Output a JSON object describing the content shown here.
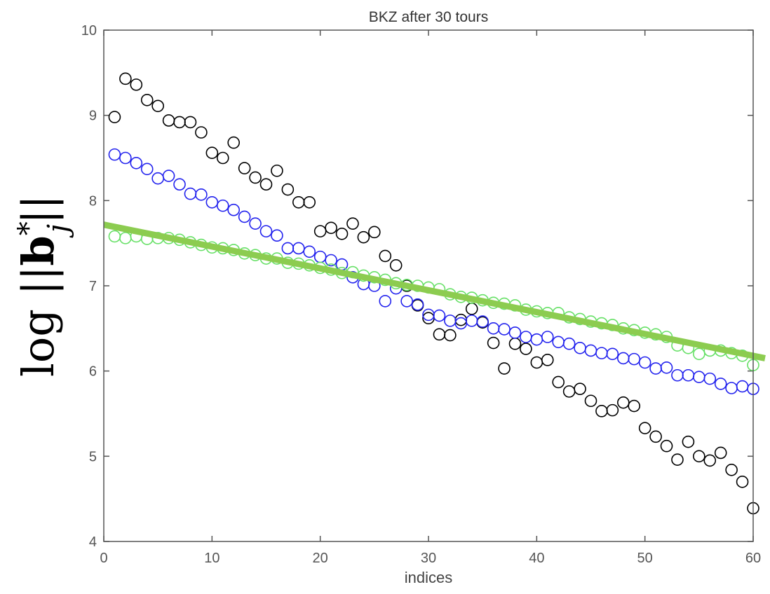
{
  "colors": {
    "axes": "#555555",
    "background": "#ffffff"
  },
  "chart_data": {
    "type": "scatter",
    "title": "BKZ after 30 tours",
    "xlabel": "indices",
    "ylabel": {
      "prefix": "log ||",
      "symbol": "b",
      "superscript": "*",
      "subscript": "j",
      "suffix": "||"
    },
    "xlim": [
      0,
      60
    ],
    "ylim": [
      4,
      10
    ],
    "xticks": [
      0,
      10,
      20,
      30,
      40,
      50,
      60
    ],
    "yticks": [
      4,
      5,
      6,
      7,
      8,
      9,
      10
    ],
    "grid": false,
    "x": [
      1,
      2,
      3,
      4,
      5,
      6,
      7,
      8,
      9,
      10,
      11,
      12,
      13,
      14,
      15,
      16,
      17,
      18,
      19,
      20,
      21,
      22,
      23,
      24,
      25,
      26,
      27,
      28,
      29,
      30,
      31,
      32,
      33,
      34,
      35,
      36,
      37,
      38,
      39,
      40,
      41,
      42,
      43,
      44,
      45,
      46,
      47,
      48,
      49,
      50,
      51,
      52,
      53,
      54,
      55,
      56,
      57,
      58,
      59,
      60
    ],
    "series": [
      {
        "color": "#000000",
        "marker": "open-circle",
        "values": [
          8.98,
          9.43,
          9.36,
          9.18,
          9.11,
          8.94,
          8.92,
          8.92,
          8.8,
          8.56,
          8.5,
          8.68,
          8.38,
          8.27,
          8.19,
          8.35,
          8.13,
          7.98,
          7.98,
          7.64,
          7.68,
          7.61,
          7.73,
          7.57,
          7.63,
          7.35,
          7.24,
          7.0,
          6.77,
          6.62,
          6.43,
          6.42,
          6.6,
          6.73,
          6.57,
          6.33,
          6.03,
          6.32,
          6.26,
          6.1,
          6.13,
          5.87,
          5.76,
          5.79,
          5.65,
          5.53,
          5.54,
          5.63,
          5.59,
          5.33,
          5.23,
          5.12,
          4.96,
          5.17,
          5.0,
          4.95,
          5.04,
          4.84,
          4.7,
          4.39
        ]
      },
      {
        "color": "#2222ee",
        "marker": "open-circle",
        "values": [
          8.54,
          8.5,
          8.44,
          8.37,
          8.26,
          8.29,
          8.19,
          8.08,
          8.07,
          7.98,
          7.94,
          7.89,
          7.81,
          7.73,
          7.64,
          7.59,
          7.44,
          7.44,
          7.4,
          7.34,
          7.3,
          7.25,
          7.1,
          7.02,
          7.0,
          6.82,
          6.97,
          6.82,
          6.78,
          6.66,
          6.65,
          6.59,
          6.56,
          6.59,
          6.58,
          6.5,
          6.49,
          6.45,
          6.4,
          6.37,
          6.4,
          6.34,
          6.32,
          6.27,
          6.24,
          6.21,
          6.2,
          6.15,
          6.14,
          6.1,
          6.03,
          6.04,
          5.95,
          5.95,
          5.93,
          5.91,
          5.85,
          5.8,
          5.82,
          5.79
        ]
      },
      {
        "color": "#66e066",
        "marker": "open-circle",
        "values": [
          7.58,
          7.56,
          7.58,
          7.55,
          7.56,
          7.56,
          7.54,
          7.51,
          7.48,
          7.45,
          7.44,
          7.42,
          7.38,
          7.36,
          7.32,
          7.32,
          7.27,
          7.26,
          7.24,
          7.21,
          7.19,
          7.15,
          7.16,
          7.12,
          7.1,
          7.07,
          7.03,
          7.01,
          7.0,
          6.98,
          6.96,
          6.9,
          6.87,
          6.86,
          6.83,
          6.8,
          6.79,
          6.77,
          6.72,
          6.7,
          6.68,
          6.68,
          6.63,
          6.61,
          6.58,
          6.56,
          6.54,
          6.5,
          6.48,
          6.45,
          6.43,
          6.4,
          6.3,
          6.27,
          6.2,
          6.24,
          6.24,
          6.21,
          6.18,
          6.07
        ]
      }
    ],
    "fit_line": {
      "color": "#8ccc50",
      "x": [
        -0.5,
        61.1
      ],
      "y": [
        7.73,
        6.15
      ]
    }
  }
}
